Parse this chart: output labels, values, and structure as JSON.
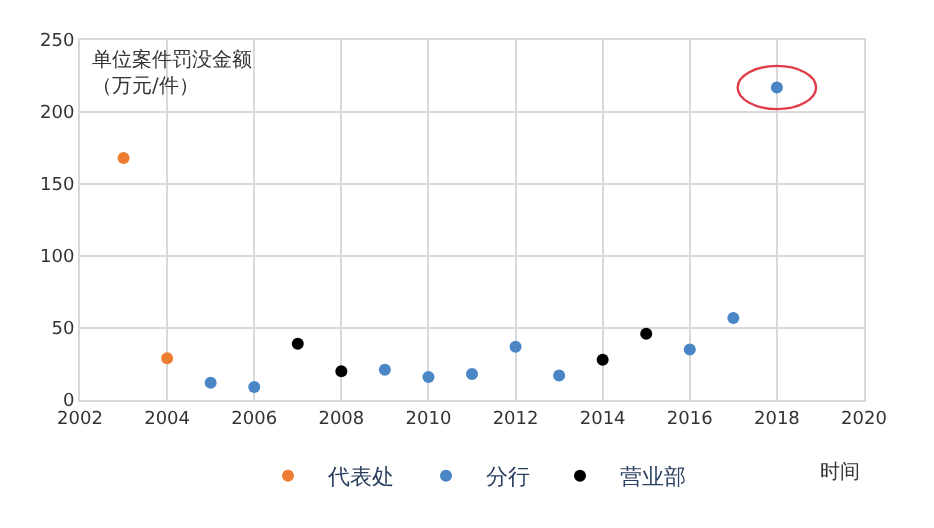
{
  "chart_data": {
    "type": "scatter",
    "ylabel": "单位案件罚没金额（万元/件）",
    "xlabel": "时间",
    "xlim": [
      2002,
      2020
    ],
    "xticks": [
      2002,
      2004,
      2006,
      2008,
      2010,
      2012,
      2014,
      2016,
      2018,
      2020
    ],
    "ylim": [
      0,
      250
    ],
    "yticks": [
      0,
      50,
      100,
      150,
      200,
      250
    ],
    "grid": true,
    "legend": "bottom",
    "marker": "circle",
    "series": [
      {
        "name": "代表处",
        "color": "#ed7d31",
        "x": [
          2003,
          2004
        ],
        "values": [
          168,
          29
        ]
      },
      {
        "name": "分行",
        "color": "#4a86c5",
        "x": [
          2005,
          2006,
          2009,
          2010,
          2011,
          2012,
          2013,
          2016,
          2017,
          2018
        ],
        "values": [
          12,
          9,
          21,
          16,
          18,
          37,
          17,
          35,
          57,
          217
        ]
      },
      {
        "name": "营业部",
        "color": "#000000",
        "x": [
          2007,
          2008,
          2014,
          2015
        ],
        "values": [
          39,
          20,
          28,
          46
        ]
      }
    ]
  }
}
